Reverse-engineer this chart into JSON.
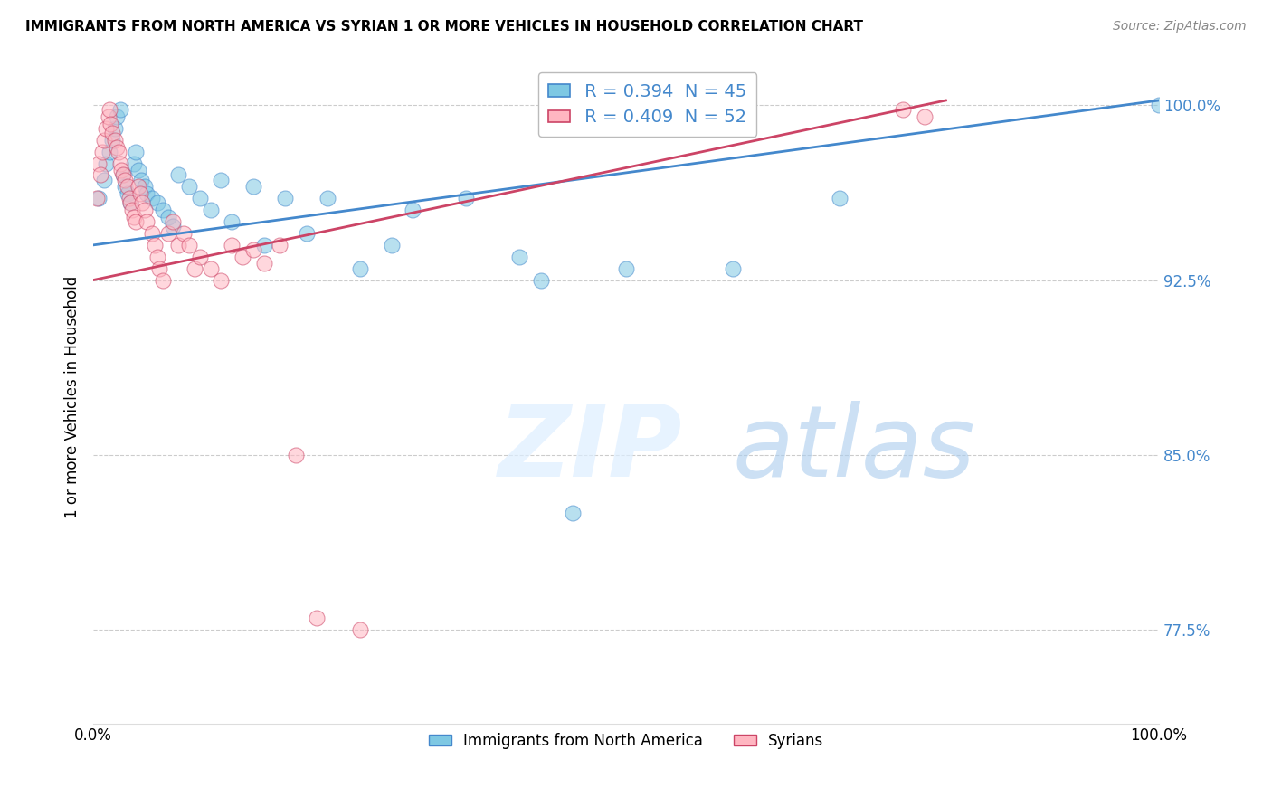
{
  "title": "IMMIGRANTS FROM NORTH AMERICA VS SYRIAN 1 OR MORE VEHICLES IN HOUSEHOLD CORRELATION CHART",
  "source": "Source: ZipAtlas.com",
  "ylabel": "1 or more Vehicles in Household",
  "legend_label_blue": "Immigrants from North America",
  "legend_label_pink": "Syrians",
  "R_blue": 0.394,
  "N_blue": 45,
  "R_pink": 0.409,
  "N_pink": 52,
  "xlim": [
    0.0,
    1.0
  ],
  "ylim": [
    0.735,
    1.015
  ],
  "ytick_values": [
    0.775,
    0.85,
    0.925,
    1.0
  ],
  "color_blue": "#7ec8e3",
  "color_pink": "#ffb6c1",
  "line_color_blue": "#4488cc",
  "line_color_pink": "#cc4466",
  "blue_x": [
    0.005,
    0.01,
    0.012,
    0.015,
    0.018,
    0.02,
    0.022,
    0.025,
    0.028,
    0.03,
    0.032,
    0.035,
    0.038,
    0.04,
    0.042,
    0.045,
    0.048,
    0.05,
    0.055,
    0.06,
    0.065,
    0.07,
    0.075,
    0.08,
    0.09,
    0.1,
    0.11,
    0.12,
    0.13,
    0.15,
    0.16,
    0.18,
    0.2,
    0.22,
    0.25,
    0.28,
    0.3,
    0.35,
    0.4,
    0.42,
    0.45,
    0.5,
    0.6,
    0.7,
    1.0
  ],
  "blue_y": [
    0.96,
    0.968,
    0.975,
    0.98,
    0.985,
    0.99,
    0.995,
    0.998,
    0.97,
    0.965,
    0.962,
    0.958,
    0.975,
    0.98,
    0.972,
    0.968,
    0.965,
    0.962,
    0.96,
    0.958,
    0.955,
    0.952,
    0.948,
    0.97,
    0.965,
    0.96,
    0.955,
    0.968,
    0.95,
    0.965,
    0.94,
    0.96,
    0.945,
    0.96,
    0.93,
    0.94,
    0.955,
    0.96,
    0.935,
    0.925,
    0.825,
    0.93,
    0.93,
    0.96,
    1.0
  ],
  "pink_x": [
    0.003,
    0.005,
    0.007,
    0.008,
    0.01,
    0.012,
    0.014,
    0.015,
    0.016,
    0.018,
    0.02,
    0.022,
    0.024,
    0.025,
    0.026,
    0.028,
    0.03,
    0.032,
    0.034,
    0.035,
    0.036,
    0.038,
    0.04,
    0.042,
    0.044,
    0.046,
    0.048,
    0.05,
    0.055,
    0.058,
    0.06,
    0.062,
    0.065,
    0.07,
    0.075,
    0.08,
    0.085,
    0.09,
    0.095,
    0.1,
    0.11,
    0.12,
    0.13,
    0.14,
    0.15,
    0.16,
    0.175,
    0.19,
    0.21,
    0.25,
    0.76,
    0.78
  ],
  "pink_y": [
    0.96,
    0.975,
    0.97,
    0.98,
    0.985,
    0.99,
    0.995,
    0.998,
    0.992,
    0.988,
    0.985,
    0.982,
    0.98,
    0.975,
    0.972,
    0.97,
    0.968,
    0.965,
    0.96,
    0.958,
    0.955,
    0.952,
    0.95,
    0.965,
    0.962,
    0.958,
    0.955,
    0.95,
    0.945,
    0.94,
    0.935,
    0.93,
    0.925,
    0.945,
    0.95,
    0.94,
    0.945,
    0.94,
    0.93,
    0.935,
    0.93,
    0.925,
    0.94,
    0.935,
    0.938,
    0.932,
    0.94,
    0.85,
    0.78,
    0.775,
    0.998,
    0.995
  ]
}
